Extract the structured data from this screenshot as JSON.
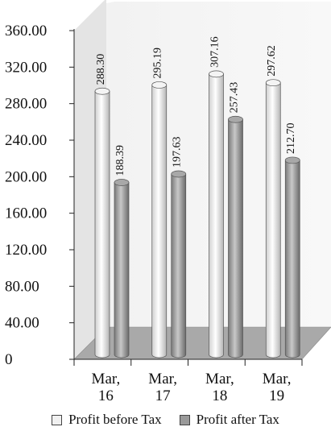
{
  "chart_data": {
    "type": "bar",
    "categories": [
      [
        "Mar,",
        "16"
      ],
      [
        "Mar,",
        "17"
      ],
      [
        "Mar,",
        "18"
      ],
      [
        "Mar,",
        "19"
      ]
    ],
    "series": [
      {
        "name": "Profit before Tax",
        "values": [
          288.3,
          295.19,
          307.16,
          297.62
        ],
        "labels": [
          "288.30",
          "295.19",
          "307.16",
          "297.62"
        ],
        "color": "#f0f0f0"
      },
      {
        "name": "Profit after Tax",
        "values": [
          188.39,
          197.63,
          257.43,
          212.7
        ],
        "labels": [
          "188.39",
          "197.63",
          "257.43",
          "212.70"
        ],
        "color": "#9a9a9a"
      }
    ],
    "yticks": [
      "0",
      "40.00",
      "80.00",
      "120.00",
      "160.00",
      "200.00",
      "240.00",
      "280.00",
      "320.00",
      "360.00"
    ],
    "ylim": [
      0,
      360
    ],
    "legend_position": "bottom",
    "style": "3d-cylinder"
  }
}
